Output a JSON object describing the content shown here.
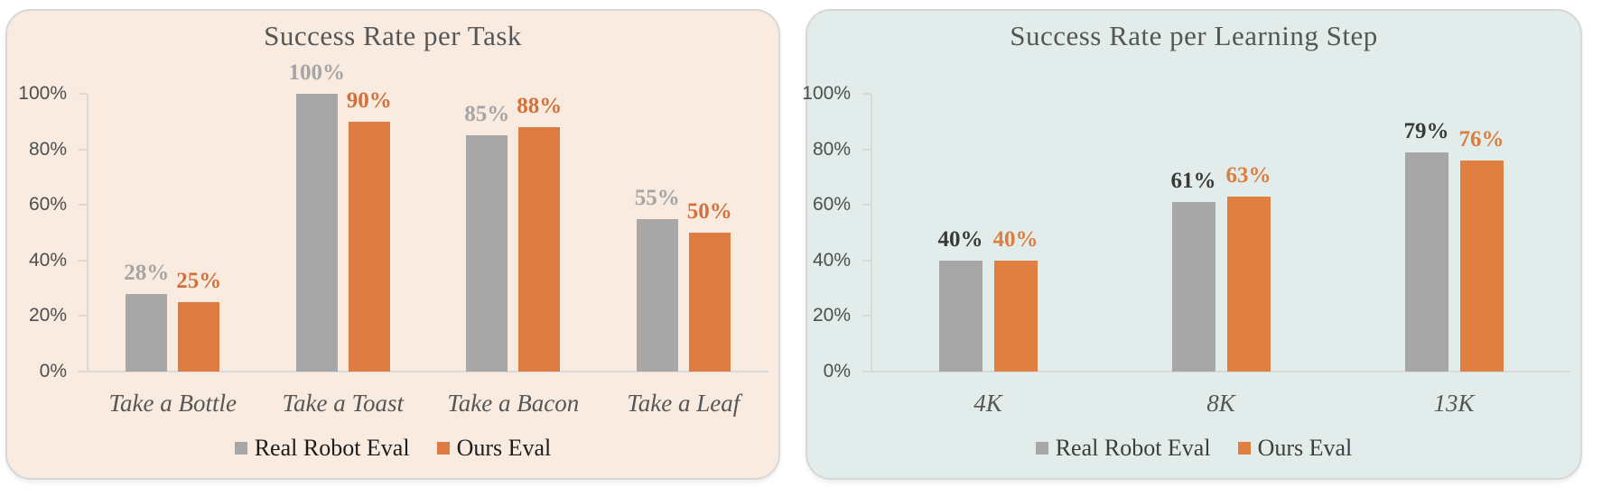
{
  "figure": {
    "background": "#FFFFFF"
  },
  "chart_data": [
    {
      "type": "bar",
      "title": "Success Rate per Task",
      "panel_background": "#F9EBE0",
      "panel_border": "#D7D7D7",
      "title_color": "#565656",
      "categories": [
        "Take a Bottle",
        "Take a Toast",
        "Take a Bacon",
        "Take a Leaf"
      ],
      "series": [
        {
          "name": "Real Robot Eval",
          "color": "#A7A7A7",
          "label_color": "#A5A5A5",
          "values": [
            28,
            100,
            85,
            55
          ],
          "labels": [
            "28%",
            "100%",
            "85%",
            "55%"
          ]
        },
        {
          "name": "Ours Eval",
          "color": "#DC7C42",
          "label_color": "#D2713C",
          "values": [
            25,
            90,
            88,
            50
          ],
          "labels": [
            "25%",
            "90%",
            "88%",
            "50%"
          ]
        }
      ],
      "xlabel": "",
      "ylabel": "",
      "ylim": [
        0,
        100
      ],
      "y_ticks": [
        0,
        20,
        40,
        60,
        80,
        100
      ],
      "y_tick_labels": [
        "0%",
        "20%",
        "40%",
        "60%",
        "80%",
        "100%"
      ],
      "grid": false,
      "legend_position": "bottom",
      "legend_text_color": "#1C1C1C",
      "axis_color": "#D9D9D9",
      "tick_label_color": "#4E4E4E",
      "category_label_color": "#565656"
    },
    {
      "type": "bar",
      "title": "Success Rate per Learning Step",
      "panel_background": "#E2EDEB",
      "panel_border": "#D7D7D7",
      "title_color": "#565656",
      "categories": [
        "4K",
        "8K",
        "13K"
      ],
      "series": [
        {
          "name": "Real Robot Eval",
          "color": "#A7A7A7",
          "label_color": "#3A3A3A",
          "values": [
            40,
            61,
            79
          ],
          "labels": [
            "40%",
            "61%",
            "79%"
          ]
        },
        {
          "name": "Ours Eval",
          "color": "#DF7F42",
          "label_color": "#DC7E3E",
          "values": [
            40,
            63,
            76
          ],
          "labels": [
            "40%",
            "63%",
            "76%"
          ]
        }
      ],
      "xlabel": "",
      "ylabel": "",
      "ylim": [
        0,
        100
      ],
      "y_ticks": [
        0,
        20,
        40,
        60,
        80,
        100
      ],
      "y_tick_labels": [
        "0%",
        "20%",
        "40%",
        "60%",
        "80%",
        "100%"
      ],
      "grid": false,
      "legend_position": "bottom",
      "legend_text_color": "#3D3D3D",
      "axis_color": "#D9D9D9",
      "tick_label_color": "#4E4E4E",
      "category_label_color": "#565656"
    }
  ]
}
